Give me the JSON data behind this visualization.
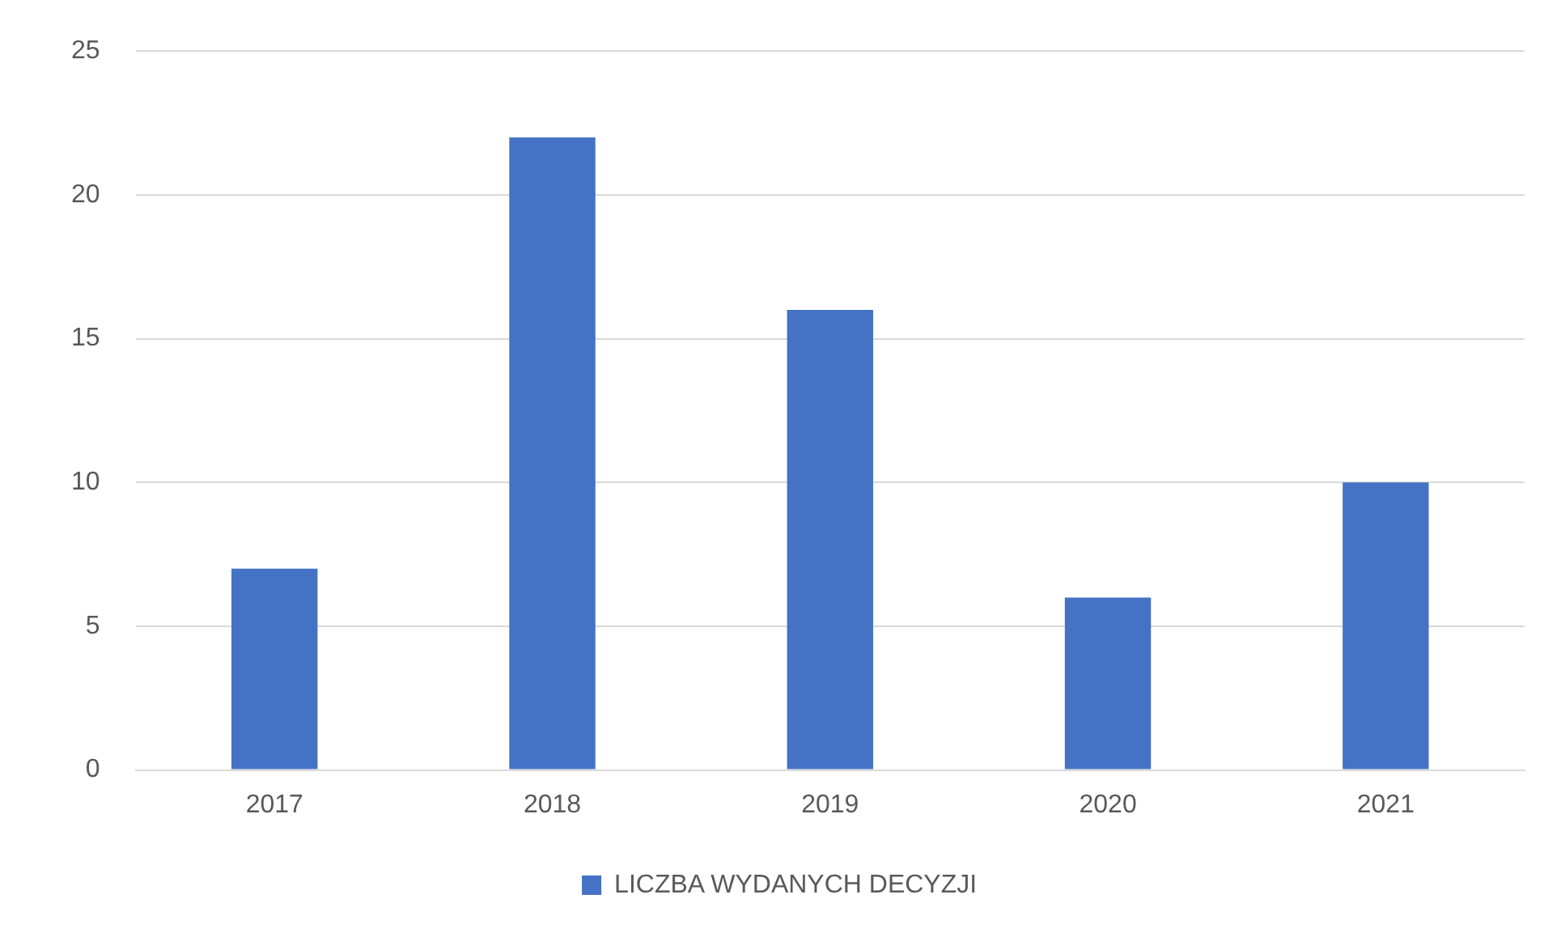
{
  "chart_data": {
    "type": "bar",
    "categories": [
      "2017",
      "2018",
      "2019",
      "2020",
      "2021"
    ],
    "series": [
      {
        "name": "LICZBA WYDANYCH DECYZJI",
        "color": "#4472c4",
        "values": [
          7,
          22,
          16,
          6,
          10
        ]
      }
    ],
    "ylim": [
      0,
      25
    ],
    "yticks": [
      0,
      5,
      10,
      15,
      20,
      25
    ],
    "grid": "y",
    "legend": "bottom"
  }
}
